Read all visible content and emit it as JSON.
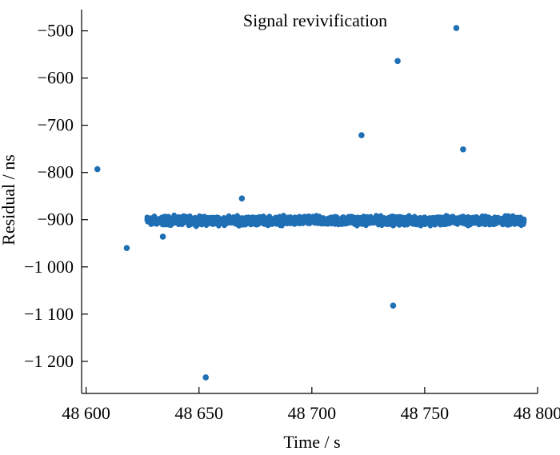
{
  "chart_data": {
    "type": "scatter",
    "title": "Signal revivification",
    "xlabel": "Time / s",
    "ylabel": "Residual / ns",
    "xlim": [
      48598,
      48800
    ],
    "ylim": [
      -1268,
      -455
    ],
    "xticks": [
      48600,
      48650,
      48700,
      48750,
      48800
    ],
    "xtick_labels": [
      "48 600",
      "48 650",
      "48 700",
      "48 750",
      "48 800"
    ],
    "yticks": [
      -500,
      -600,
      -700,
      -800,
      -900,
      -1000,
      -1100,
      -1200
    ],
    "ytick_labels": [
      "−500",
      "−600",
      "−700",
      "−800",
      "−900",
      "−1 000",
      "−1 100",
      "−1 200"
    ],
    "band": {
      "x_start": 48627,
      "x_end": 48794,
      "center": -902,
      "half_width": 13,
      "step": 0.25
    },
    "outliers": [
      {
        "x": 48605,
        "y": -793
      },
      {
        "x": 48618,
        "y": -960
      },
      {
        "x": 48634,
        "y": -936
      },
      {
        "x": 48653,
        "y": -1234
      },
      {
        "x": 48669,
        "y": -855
      },
      {
        "x": 48722,
        "y": -721
      },
      {
        "x": 48736,
        "y": -1082
      },
      {
        "x": 48738,
        "y": -564
      },
      {
        "x": 48764,
        "y": -494
      },
      {
        "x": 48767,
        "y": -751
      }
    ],
    "point_color": "#1f6fb5"
  }
}
